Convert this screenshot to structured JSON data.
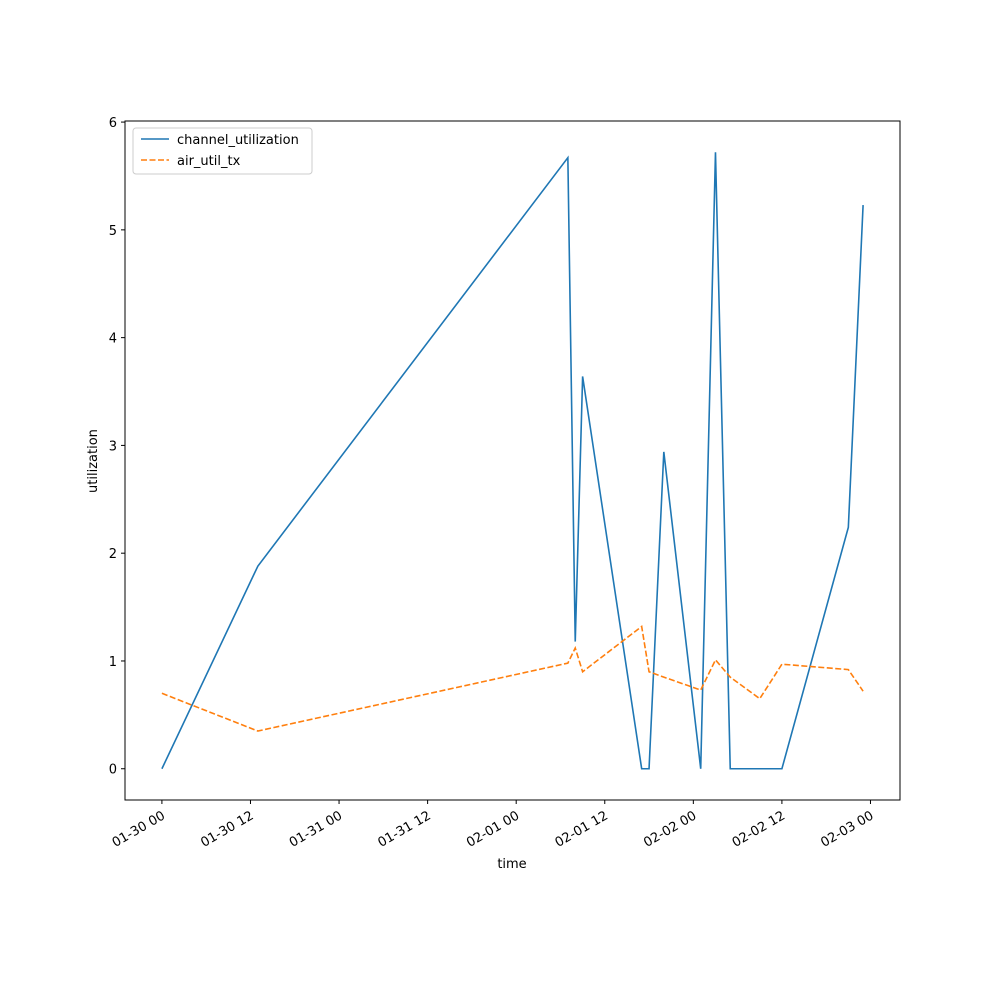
{
  "chart_data": {
    "type": "line",
    "x_label": "time",
    "y_label": "utilization",
    "x": [
      "01-30 00",
      "01-30 13",
      "02-01 07",
      "02-01 08",
      "02-01 09",
      "02-01 17",
      "02-01 18",
      "02-01 20",
      "02-02 01",
      "02-02 03",
      "02-02 05",
      "02-02 09",
      "02-02 12",
      "02-02 21",
      "02-02 23"
    ],
    "series": [
      {
        "name": "channel_utilization",
        "color": "#1f77b4",
        "dash": "solid",
        "values": [
          0,
          1.88,
          5.67,
          1.18,
          3.64,
          0,
          0,
          2.94,
          0,
          5.72,
          0,
          0,
          0,
          2.24,
          5.23
        ]
      },
      {
        "name": "air_util_tx",
        "color": "#ff7f0e",
        "dash": "dashed",
        "values": [
          0.7,
          0.35,
          0.98,
          1.12,
          0.9,
          1.32,
          0.9,
          0.85,
          0.73,
          1.01,
          0.85,
          0.65,
          0.97,
          0.92,
          0.72
        ]
      }
    ],
    "xlim": [
      "01-29 19",
      "02-03 04"
    ],
    "xticks": [
      "01-30 00",
      "01-30 12",
      "01-31 00",
      "01-31 12",
      "02-01 00",
      "02-01 12",
      "02-02 00",
      "02-02 12",
      "02-03 00"
    ],
    "ylim": [
      -0.29,
      6.01
    ],
    "yticks": [
      0,
      1,
      2,
      3,
      4,
      5,
      6
    ],
    "legend": "upper left"
  }
}
